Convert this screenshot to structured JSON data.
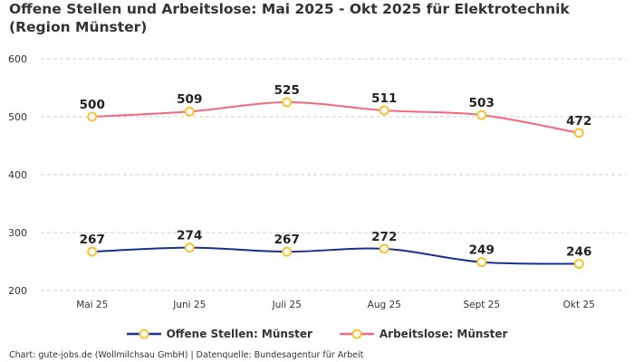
{
  "title": "Offene Stellen und Arbeitslose: Mai 2025 - Okt 2025 für Elektrotechnik (Region Münster)",
  "footer": "Chart: gute-jobs.de (Wollmilchsau GmbH) | Datenquelle: Bundesagentur für Arbeit",
  "chart_data": {
    "type": "line",
    "title": "Offene Stellen und Arbeitslose: Mai 2025 - Okt 2025 für Elektrotechnik (Region Münster)",
    "categories": [
      "Mai 25",
      "Juni 25",
      "Juli 25",
      "Aug 25",
      "Sept 25",
      "Okt 25"
    ],
    "ylim": [
      200,
      600
    ],
    "yticks": [
      "200",
      "300",
      "400",
      "500",
      "600"
    ],
    "grid": true,
    "legend": "bottom",
    "marker_color": "#f5c431",
    "series": [
      {
        "name": "Offene Stellen: Münster",
        "color": "#1a2f8f",
        "values": [
          267,
          274,
          267,
          272,
          249,
          246
        ]
      },
      {
        "name": "Arbeitslose: Münster",
        "color": "#f7677e",
        "values": [
          500,
          509,
          525,
          511,
          503,
          472
        ]
      }
    ]
  }
}
